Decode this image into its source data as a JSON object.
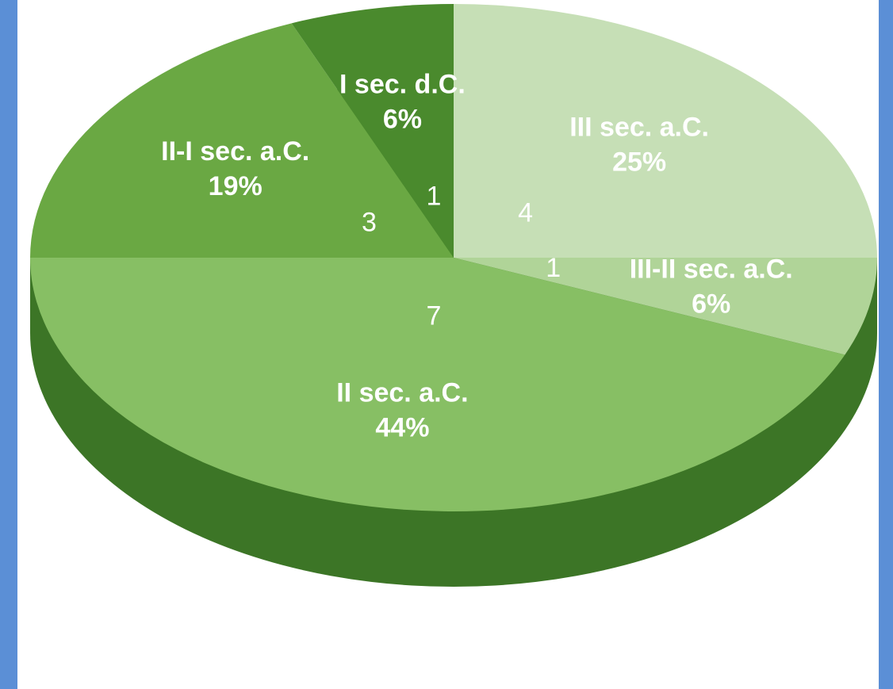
{
  "chart_data": {
    "type": "pie",
    "categories": [
      "III sec. a.C.",
      "III-II sec. a.C.",
      "II sec. a.C.",
      "II-I sec. a.C.",
      "I sec. d.C."
    ],
    "values": [
      4,
      1,
      7,
      3,
      1
    ],
    "percent_labels": [
      "25%",
      "6%",
      "44%",
      "19%",
      "6%"
    ],
    "colors": [
      "#c6dfb6",
      "#b0d498",
      "#87bf64",
      "#6aa843",
      "#4a8a2d"
    ]
  }
}
